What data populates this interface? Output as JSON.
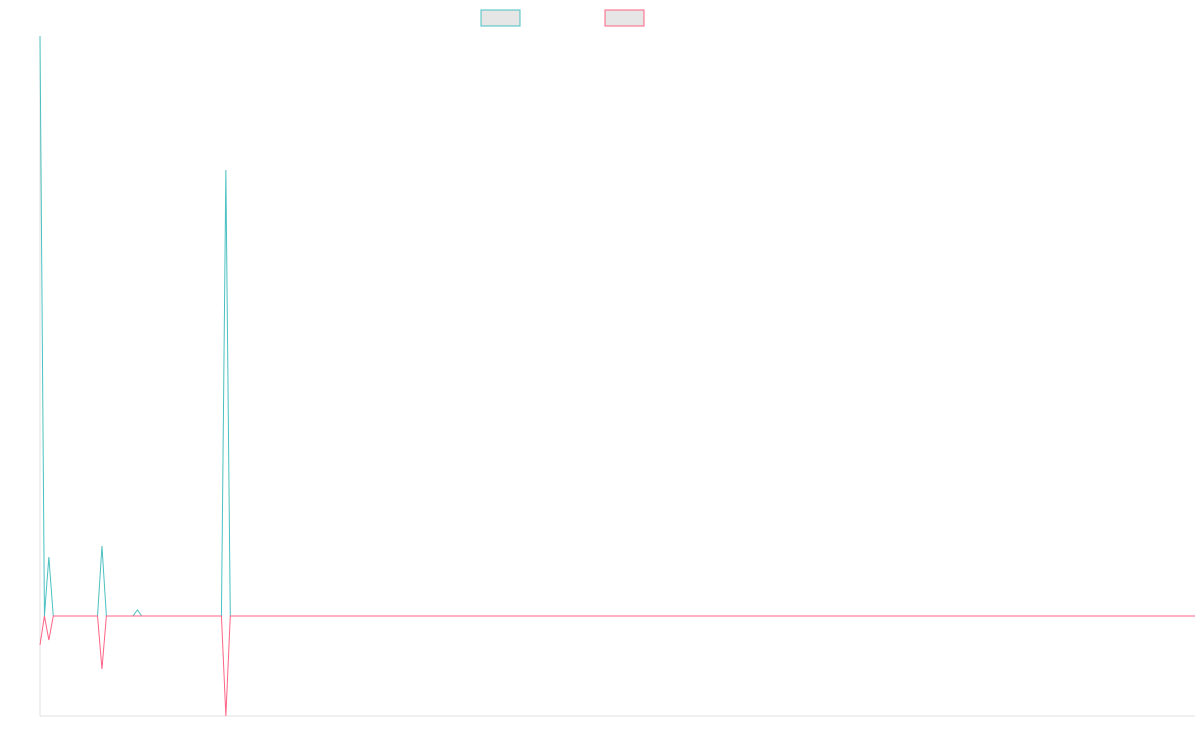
{
  "chart_data": {
    "type": "line",
    "x": [
      0,
      1,
      2,
      3,
      13,
      14,
      15,
      21,
      22,
      23,
      41,
      42,
      43,
      261
    ],
    "series": [
      {
        "color": "#4bc0c0",
        "values": [
          580,
          0,
          59,
          0,
          0,
          70,
          0,
          0,
          6,
          0,
          0,
          446,
          0,
          0
        ]
      },
      {
        "color": "#ff6384",
        "values": [
          -29,
          0,
          -24,
          0,
          0,
          -53,
          0,
          0,
          0,
          0,
          0,
          -100,
          0,
          0
        ]
      }
    ],
    "xlim": [
      0,
      261
    ],
    "ylim": [
      -100,
      580
    ],
    "legend": "top"
  }
}
